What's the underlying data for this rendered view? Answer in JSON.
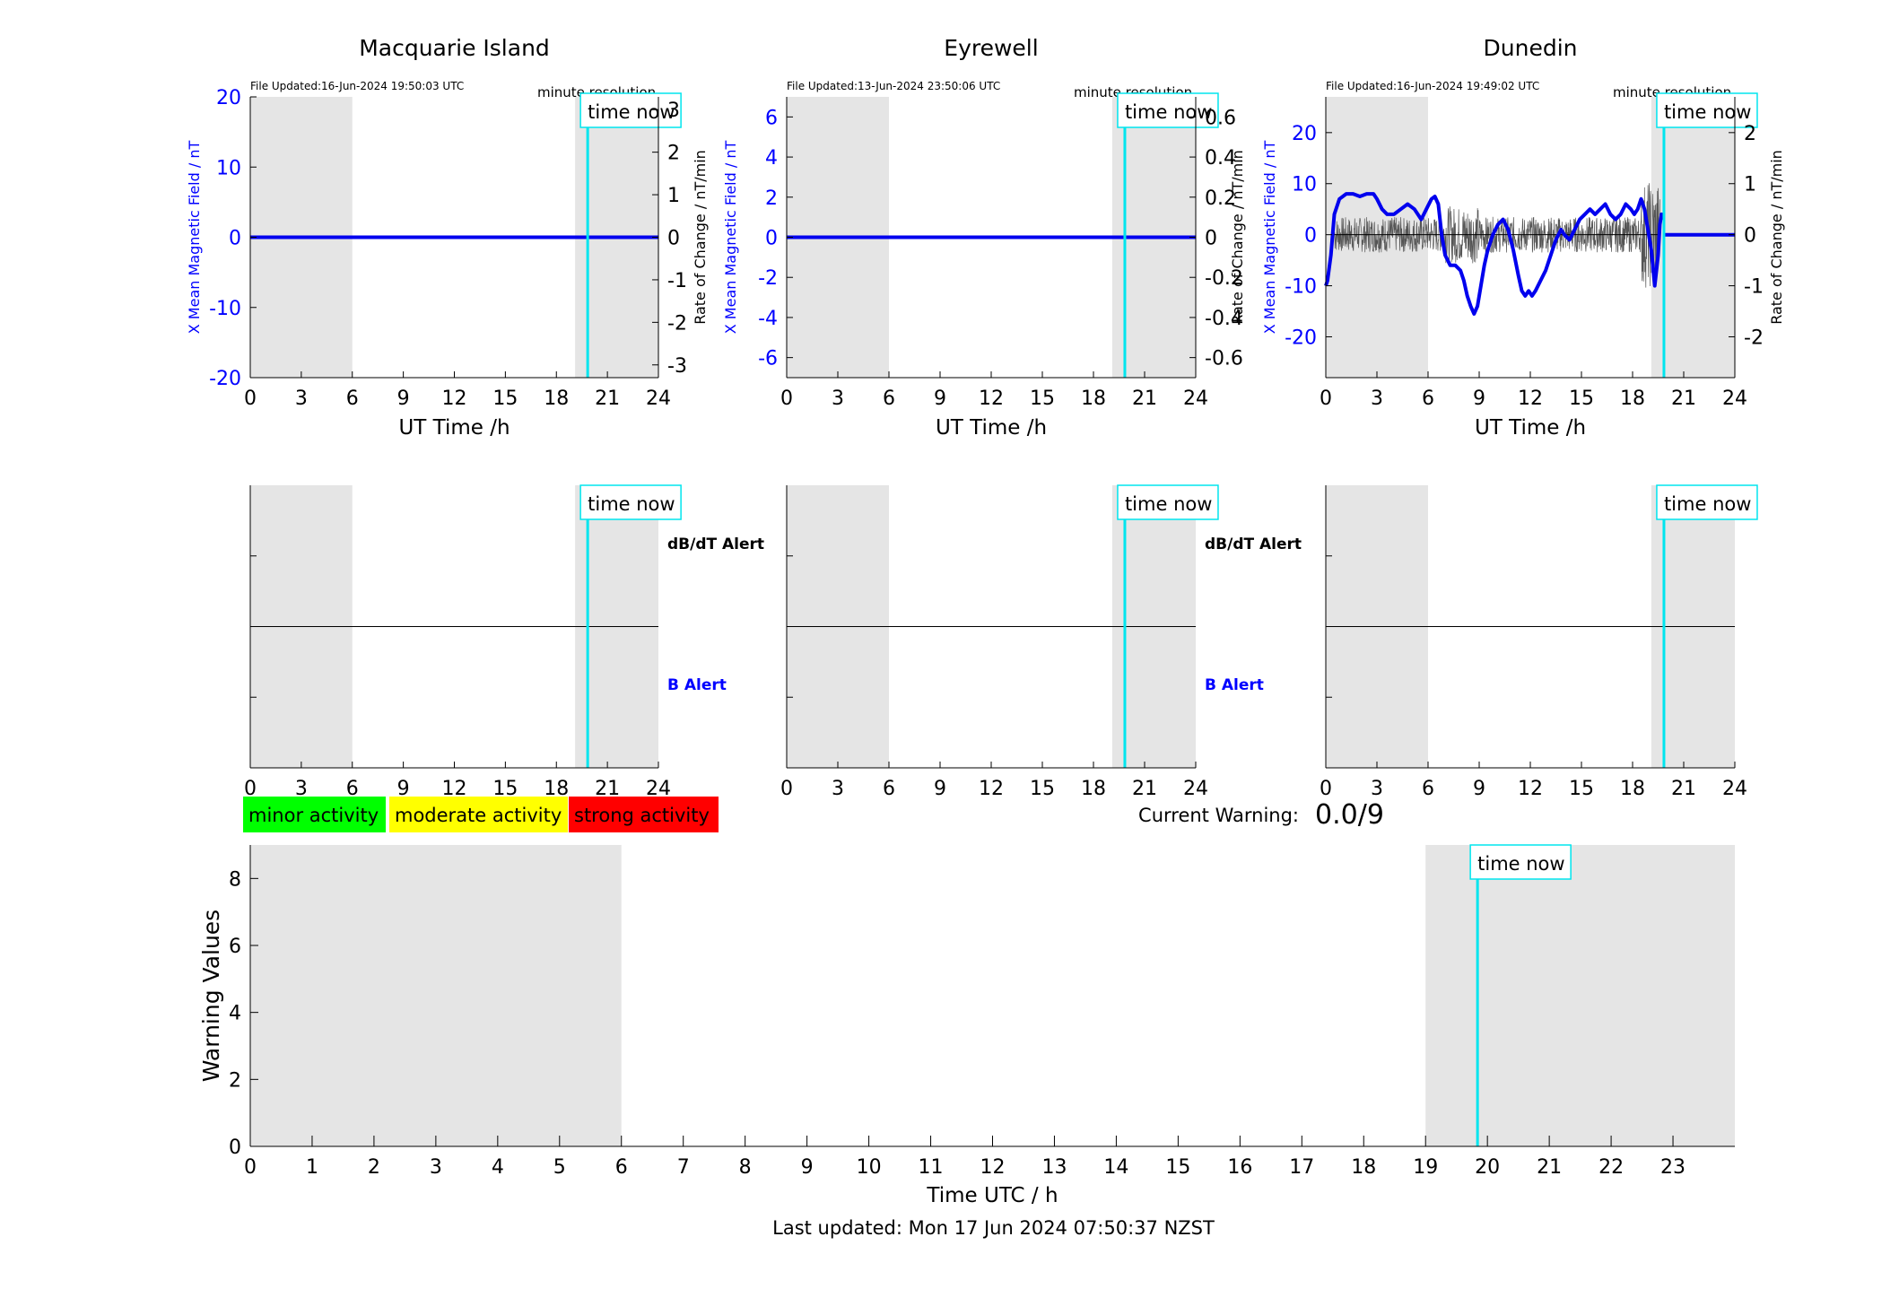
{
  "chart_data": [
    {
      "type": "line",
      "title": "Macquarie Island",
      "file_updated": "File Updated:16-Jun-2024 19:50:03 UTC",
      "resolution": "minute resolution",
      "time_now_label": "time now",
      "xlabel": "UT Time /h",
      "ylabel_left": "X Mean Magnetic Field / nT",
      "ylabel_right": "Rate of Change / nT/min",
      "xlim": [
        0,
        24
      ],
      "ylim_left": [
        -20,
        20
      ],
      "ylim_right": [
        -3.3,
        3.3
      ],
      "x_ticks": [
        "0",
        "3",
        "6",
        "9",
        "12",
        "15",
        "18",
        "21",
        "24"
      ],
      "y_ticks_left": [
        "-20",
        "-10",
        "0",
        "10",
        "20"
      ],
      "y_ticks_right": [
        "-3",
        "-2",
        "-1",
        "0",
        "1",
        "2",
        "3"
      ],
      "shaded_ranges": [
        [
          0,
          6
        ],
        [
          19.1,
          24
        ]
      ],
      "time_now": 19.84,
      "series": [
        {
          "type": "mean_field",
          "x": [
            0,
            24
          ],
          "y": [
            0,
            0
          ]
        }
      ]
    },
    {
      "type": "line",
      "title": "Eyrewell",
      "file_updated": "File Updated:13-Jun-2024 23:50:06 UTC",
      "resolution": "minute resolution",
      "time_now_label": "time now",
      "xlabel": "UT Time /h",
      "ylabel_left": "X Mean Magnetic Field / nT",
      "ylabel_right": "Rate of Change / nT/min",
      "xlim": [
        0,
        24
      ],
      "ylim_left": [
        -7,
        7
      ],
      "ylim_right": [
        -0.7,
        0.7
      ],
      "x_ticks": [
        "0",
        "3",
        "6",
        "9",
        "12",
        "15",
        "18",
        "21",
        "24"
      ],
      "y_ticks_left": [
        "-6",
        "-4",
        "-2",
        "0",
        "2",
        "4",
        "6"
      ],
      "y_ticks_right": [
        "-0.6",
        "-0.4",
        "-0.2",
        "0",
        "0.2",
        "0.4",
        "0.6"
      ],
      "shaded_ranges": [
        [
          0,
          6
        ],
        [
          19.1,
          24
        ]
      ],
      "time_now": 19.84,
      "series": [
        {
          "type": "mean_field",
          "x": [
            0,
            24
          ],
          "y": [
            0,
            0
          ]
        }
      ]
    },
    {
      "type": "line",
      "title": "Dunedin",
      "file_updated": "File Updated:16-Jun-2024 19:49:02 UTC",
      "resolution": "minute resolution",
      "time_now_label": "time now",
      "xlabel": "UT Time /h",
      "ylabel_left": "X Mean Magnetic Field / nT",
      "ylabel_right": "Rate of Change / nT/min",
      "xlim": [
        0,
        24
      ],
      "ylim_left": [
        -28,
        27
      ],
      "ylim_right": [
        -2.8,
        2.7
      ],
      "x_ticks": [
        "0",
        "3",
        "6",
        "9",
        "12",
        "15",
        "18",
        "21",
        "24"
      ],
      "y_ticks_left": [
        "-20",
        "-10",
        "0",
        "10",
        "20"
      ],
      "y_ticks_right": [
        "-2",
        "-1",
        "0",
        "1",
        "2"
      ],
      "shaded_ranges": [
        [
          0,
          6
        ],
        [
          19.1,
          24
        ]
      ],
      "time_now": 19.84,
      "series": [
        {
          "type": "mean_field",
          "x": [
            0,
            0.1,
            0.3,
            0.5,
            0.8,
            1.2,
            1.6,
            2.0,
            2.4,
            2.8,
            3.0,
            3.3,
            3.6,
            4.0,
            4.4,
            4.8,
            5.2,
            5.6,
            5.9,
            6.2,
            6.4,
            6.6,
            6.8,
            7.0,
            7.3,
            7.6,
            7.9,
            8.1,
            8.3,
            8.5,
            8.7,
            8.9,
            9.1,
            9.3,
            9.5,
            9.8,
            10.1,
            10.4,
            10.7,
            11.0,
            11.3,
            11.5,
            11.7,
            11.9,
            12.1,
            12.3,
            12.6,
            12.9,
            13.2,
            13.5,
            13.8,
            14.0,
            14.3,
            14.6,
            14.9,
            15.2,
            15.5,
            15.8,
            16.1,
            16.4,
            16.7,
            17.0,
            17.3,
            17.6,
            17.9,
            18.1,
            18.3,
            18.5,
            18.7,
            18.9,
            19.1,
            19.3,
            19.5,
            19.6,
            19.7,
            19.8
          ],
          "y": [
            -10,
            -9,
            -4,
            4,
            7,
            8,
            8,
            7.5,
            8,
            8,
            7,
            5,
            4,
            4,
            5,
            6,
            5,
            3,
            5,
            7,
            7.5,
            6,
            0,
            -4,
            -6,
            -6,
            -7,
            -9,
            -12,
            -14,
            -15.5,
            -14,
            -10,
            -6,
            -3,
            0,
            2,
            3,
            1,
            -3,
            -8,
            -11,
            -12,
            -11,
            -12,
            -11,
            -9,
            -7,
            -4,
            -1,
            1,
            0,
            -1,
            1,
            3,
            4,
            5,
            4,
            5,
            6,
            4,
            3,
            4,
            6,
            5,
            4,
            5,
            7,
            5,
            1,
            -3,
            -10,
            -4,
            2,
            4,
            3
          ]
        },
        {
          "type": "mean_field_flat",
          "x": [
            19.85,
            24
          ],
          "y": [
            0,
            0
          ]
        },
        {
          "type": "rate_of_change_noise",
          "x": [
            0.5,
            19.6
          ],
          "amplitude": 0.35
        }
      ]
    }
  ],
  "alert_panels": [
    {
      "title": "Macquarie Island",
      "db_dt_label": "dB/dT Alert",
      "b_label": "B Alert",
      "time_now_label": "time now"
    },
    {
      "title": "Eyrewell",
      "db_dt_label": "dB/dT Alert",
      "b_label": "B Alert",
      "time_now_label": "time now"
    },
    {
      "title": "Dunedin",
      "db_dt_label": "",
      "b_label": "",
      "time_now_label": "time now"
    }
  ],
  "alert_x_ticks": [
    "0",
    "3",
    "6",
    "9",
    "12",
    "15",
    "18",
    "21",
    "24"
  ],
  "legend": {
    "minor": "minor activity",
    "moderate": "moderate activity",
    "strong": "strong activity",
    "colors": {
      "minor": "#00ff00",
      "moderate": "#ffff00",
      "strong": "#ff0000"
    }
  },
  "current_warning": {
    "label": "Current Warning:",
    "value": "0.0/9"
  },
  "warning_chart": {
    "type": "bar",
    "ylabel": "Warning Values",
    "xlabel": "Time UTC / h",
    "xlim": [
      0,
      24
    ],
    "ylim": [
      0,
      9
    ],
    "x_ticks": [
      "0",
      "1",
      "2",
      "3",
      "4",
      "5",
      "6",
      "7",
      "8",
      "9",
      "10",
      "11",
      "12",
      "13",
      "14",
      "15",
      "16",
      "17",
      "18",
      "19",
      "20",
      "21",
      "22",
      "23"
    ],
    "y_ticks": [
      "0",
      "2",
      "4",
      "6",
      "8"
    ],
    "shaded_ranges": [
      [
        0,
        6
      ],
      [
        19,
        24
      ]
    ],
    "time_now": 19.84,
    "time_now_label": "time now",
    "values": []
  },
  "footer": {
    "last_updated": "Last updated: Mon 17 Jun 2024 07:50:37 NZST"
  },
  "colors": {
    "shade": "#e5e5e5",
    "time_now": "#00e5ee",
    "mean_field": "#0000ee",
    "axis_left_label": "#0000ff"
  }
}
